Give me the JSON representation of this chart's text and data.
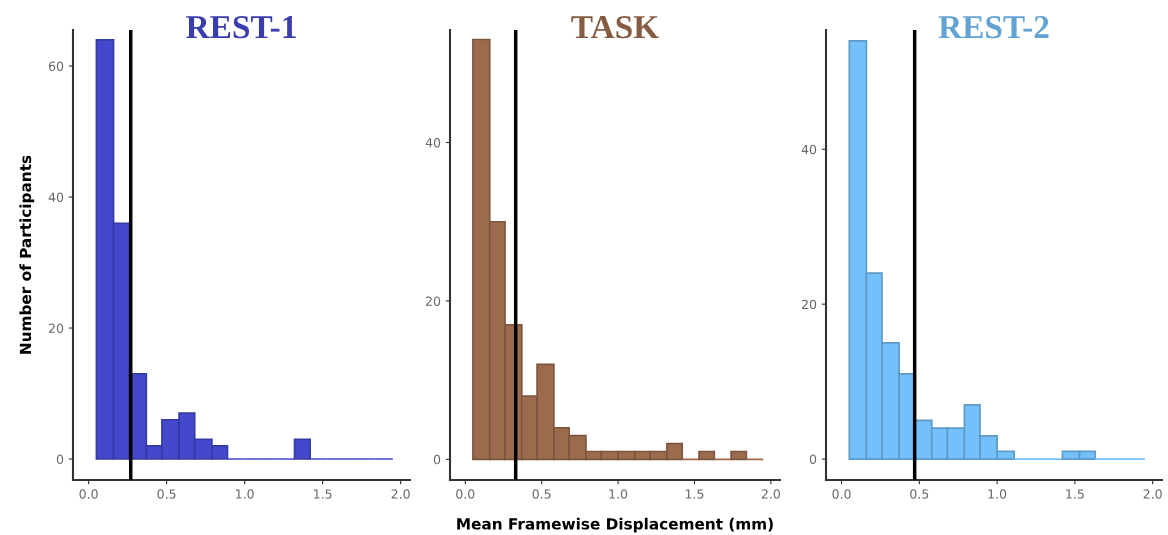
{
  "chart_data": [
    {
      "type": "histogram",
      "title": "REST-1",
      "ylabel": "Number of Participants",
      "color": "#4448cc",
      "bins": [
        0.05,
        0.16,
        0.26,
        0.37,
        0.47,
        0.58,
        0.68,
        0.79,
        0.89,
        1.0,
        1.11,
        1.21,
        1.32,
        1.42,
        1.53,
        1.63,
        1.74,
        1.84,
        1.95
      ],
      "values": [
        64,
        36,
        13,
        2,
        6,
        7,
        3,
        2,
        0,
        0,
        0,
        0,
        3,
        0,
        0,
        0,
        0,
        0
      ],
      "xlim": [
        -0.1,
        2.06
      ],
      "xticks": [
        {
          "value": 0,
          "label": "0.0"
        },
        {
          "value": 0.5,
          "label": "0.5"
        },
        {
          "value": 1,
          "label": "1.0"
        },
        {
          "value": 1.5,
          "label": "1.5"
        },
        {
          "value": 2,
          "label": "2.0"
        }
      ],
      "ylim": [
        -3.2,
        65.5
      ],
      "yticks": [
        0,
        20,
        40,
        60
      ],
      "ref_lines": [
        {
          "axis": "x",
          "value": 0.27,
          "color": "#000000"
        }
      ],
      "grid": false
    },
    {
      "type": "histogram",
      "title": "TASK",
      "xlabel": "Mean Framewise Displacement (mm)",
      "color": "#9c6b4e",
      "bins": [
        0.05,
        0.16,
        0.26,
        0.37,
        0.47,
        0.58,
        0.68,
        0.79,
        0.89,
        1.0,
        1.11,
        1.21,
        1.32,
        1.42,
        1.53,
        1.63,
        1.74,
        1.84,
        1.95
      ],
      "values": [
        53,
        30,
        17,
        8,
        12,
        4,
        3,
        1,
        1,
        1,
        1,
        1,
        2,
        0,
        1,
        0,
        1,
        0
      ],
      "xlim": [
        -0.1,
        2.06
      ],
      "xticks": [
        {
          "value": 0,
          "label": "0.0"
        },
        {
          "value": 0.5,
          "label": "0.5"
        },
        {
          "value": 1,
          "label": "1.0"
        },
        {
          "value": 1.5,
          "label": "1.5"
        },
        {
          "value": 2,
          "label": "2.0"
        }
      ],
      "ylim": [
        -2.6,
        54.2
      ],
      "yticks": [
        0,
        20,
        40
      ],
      "ref_lines": [
        {
          "axis": "x",
          "value": 0.33,
          "color": "#000000"
        }
      ],
      "grid": false
    },
    {
      "type": "histogram",
      "title": "REST-2",
      "color": "#74c0fa",
      "bins": [
        0.05,
        0.16,
        0.26,
        0.37,
        0.47,
        0.58,
        0.68,
        0.79,
        0.89,
        1.0,
        1.11,
        1.21,
        1.32,
        1.42,
        1.53,
        1.63,
        1.74,
        1.84,
        1.95
      ],
      "values": [
        54,
        24,
        15,
        11,
        5,
        4,
        4,
        7,
        3,
        1,
        0,
        0,
        0,
        1,
        1,
        0,
        0,
        0
      ],
      "xlim": [
        -0.1,
        2.06
      ],
      "xticks": [
        {
          "value": 0,
          "label": "0.0"
        },
        {
          "value": 0.5,
          "label": "0.5"
        },
        {
          "value": 1,
          "label": "1.0"
        },
        {
          "value": 1.5,
          "label": "1.5"
        },
        {
          "value": 2,
          "label": "2.0"
        }
      ],
      "ylim": [
        -2.7,
        55.4
      ],
      "yticks": [
        0,
        20,
        40
      ],
      "ref_lines": [
        {
          "axis": "x",
          "value": 0.47,
          "color": "#000000"
        }
      ],
      "grid": false
    }
  ]
}
